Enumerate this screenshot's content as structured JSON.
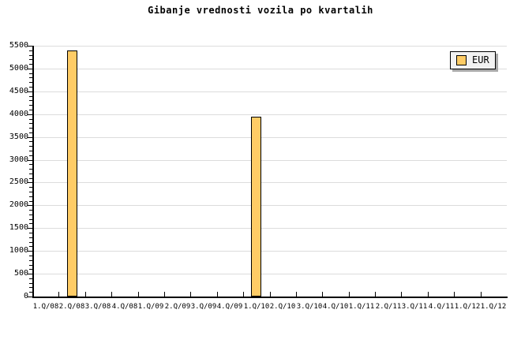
{
  "page": {
    "title": "Gibanje vrednosti vozila po kvartalih"
  },
  "legend": {
    "label": "EUR"
  },
  "chart_data": {
    "type": "bar",
    "title": "Gibanje vrednosti vozila po kvartalih",
    "xlabel": "",
    "ylabel": "",
    "categories": [
      "1.Q/08",
      "2.Q/08",
      "3.Q/08",
      "4.Q/08",
      "1.Q/09",
      "2.Q/09",
      "3.Q/09",
      "4.Q/09",
      "1.Q/10",
      "2.Q/10",
      "3.Q/10",
      "4.Q/10",
      "1.Q/11",
      "2.Q/11",
      "3.Q/11",
      "4.Q/11",
      "1.Q/12",
      "1.Q/12"
    ],
    "series": [
      {
        "name": "EUR",
        "values": [
          null,
          5400,
          null,
          null,
          null,
          null,
          null,
          null,
          3950,
          null,
          null,
          null,
          null,
          null,
          null,
          null,
          null,
          null
        ]
      }
    ],
    "ylim": [
      0,
      5500
    ],
    "ytick_step": 500,
    "ytick_labels": [
      "0",
      "500",
      "1000",
      "1500",
      "2000",
      "2500",
      "3000",
      "3500",
      "4000",
      "4500",
      "5000",
      "5500"
    ],
    "y_minor_tick_step": 100,
    "grid": "horizontal-major",
    "legend_position": "top-right",
    "colors": {
      "bar_fill": "#FFCC66",
      "bar_border": "#000000",
      "gridline": "#DCDCDC",
      "axis": "#000000",
      "background": "#FFFFFF",
      "legend_bg": "#F2F2F2",
      "legend_border": "#000000",
      "legend_shadow": "#A9A9A9",
      "text": "#000000"
    }
  }
}
